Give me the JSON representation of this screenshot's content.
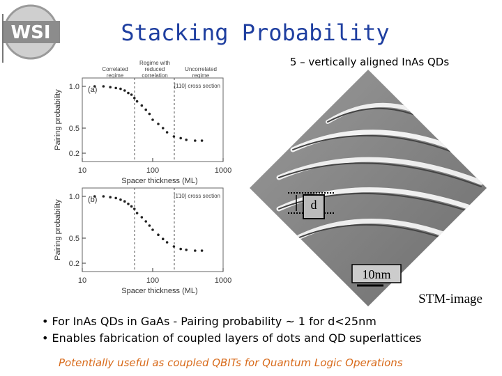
{
  "slide": {
    "logo": "WSI",
    "title": "Stacking Probability",
    "stm_caption": "5 – vertically aligned InAs QDs",
    "stm_d": "d",
    "stm_scale": "10nm",
    "stm_label": "STM-image",
    "bullets": [
      "• For InAs QDs in GaAs - Pairing probability ~ 1 for d<25nm",
      "• Enables fabrication of coupled layers of dots and QD superlattices"
    ],
    "footer": "Potentially useful as coupled QBITs for Quantum Logic Operations",
    "regime_labels": [
      [
        "Correlated",
        "regime"
      ],
      [
        "Regime with",
        "reduced",
        "correlation"
      ],
      [
        "Uncorrelated",
        "regime"
      ]
    ]
  },
  "chart_data": [
    {
      "type": "scatter",
      "panel_label": "(a)",
      "annotation": "[110] cross section",
      "x_label": "Spacer thickness (ML)",
      "y_label": "Pairing probability",
      "x_log": true,
      "color": "#222222",
      "xlim": [
        10,
        1000
      ],
      "xticks": [
        10,
        100,
        1000
      ],
      "ylim": [
        0.1,
        1.1
      ],
      "yticks": [
        {
          "value": 0.2,
          "label": "0.2"
        },
        {
          "value": 0.5,
          "label": "0.5"
        },
        {
          "value": 1,
          "label": "1.0"
        }
      ],
      "x": [
        15,
        20,
        25,
        30,
        35,
        40,
        45,
        50,
        55,
        60,
        70,
        80,
        90,
        100,
        120,
        140,
        160,
        200,
        250,
        300,
        400,
        500
      ],
      "values": [
        1.0,
        1.0,
        0.99,
        0.98,
        0.97,
        0.95,
        0.92,
        0.9,
        0.86,
        0.82,
        0.77,
        0.72,
        0.67,
        0.6,
        0.55,
        0.5,
        0.45,
        0.4,
        0.38,
        0.36,
        0.35,
        0.35
      ]
    },
    {
      "type": "scatter",
      "panel_label": "(b)",
      "annotation": "[1̄10] cross section",
      "x_label": "Spacer thickness (ML)",
      "y_label": "Pairing probability",
      "x_log": true,
      "color": "#222222",
      "xlim": [
        10,
        1000
      ],
      "xticks": [
        10,
        100,
        1000
      ],
      "ylim": [
        0.1,
        1.1
      ],
      "yticks": [
        {
          "value": 0.2,
          "label": "0.2"
        },
        {
          "value": 0.5,
          "label": "0.5"
        },
        {
          "value": 1,
          "label": "1.0"
        }
      ],
      "x": [
        15,
        20,
        25,
        30,
        35,
        40,
        45,
        50,
        55,
        60,
        70,
        80,
        90,
        100,
        120,
        140,
        160,
        200,
        250,
        300,
        400,
        500
      ],
      "values": [
        1.0,
        1.0,
        0.99,
        0.98,
        0.96,
        0.94,
        0.91,
        0.88,
        0.85,
        0.8,
        0.75,
        0.7,
        0.65,
        0.6,
        0.54,
        0.49,
        0.45,
        0.4,
        0.37,
        0.36,
        0.35,
        0.35
      ]
    }
  ]
}
